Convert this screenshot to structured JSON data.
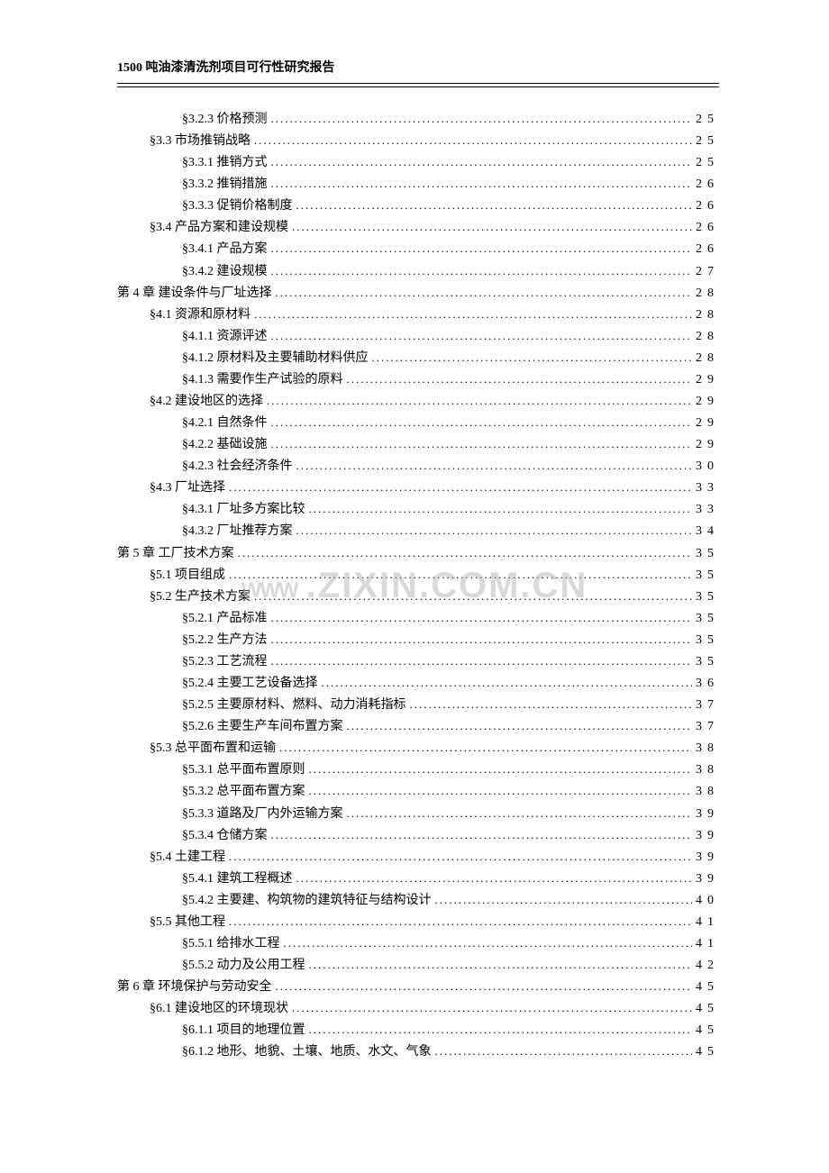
{
  "header": "1500 吨油漆清洗剂项目可行性研究报告",
  "watermark": {
    "prefix": "WWW",
    "main": ".ZIXIN.COM.CN"
  },
  "toc": [
    {
      "level": 3,
      "label": "§3.2.3  价格预测",
      "page": "25"
    },
    {
      "level": 2,
      "label": "§3.3  市场推销战略",
      "page": "25"
    },
    {
      "level": 3,
      "label": "§3.3.1  推销方式",
      "page": "25"
    },
    {
      "level": 3,
      "label": "§3.3.2  推销措施",
      "page": "26"
    },
    {
      "level": 3,
      "label": "§3.3.3  促销价格制度",
      "page": "26"
    },
    {
      "level": 2,
      "label": "§3.4  产品方案和建设规模",
      "page": "26"
    },
    {
      "level": 3,
      "label": "§3.4.1  产品方案",
      "page": "26"
    },
    {
      "level": 3,
      "label": "§3.4.2  建设规模",
      "page": "27"
    },
    {
      "level": 1,
      "label": "第 4 章  建设条件与厂址选择",
      "page": "28"
    },
    {
      "level": 2,
      "label": "§4.1  资源和原材料",
      "page": "28"
    },
    {
      "level": 3,
      "label": "§4.1.1  资源评述",
      "page": "28"
    },
    {
      "level": 3,
      "label": "§4.1.2  原材料及主要辅助材料供应",
      "page": "28"
    },
    {
      "level": 3,
      "label": "§4.1.3  需要作生产试验的原料",
      "page": "29"
    },
    {
      "level": 2,
      "label": "§4.2  建设地区的选择",
      "page": "29"
    },
    {
      "level": 3,
      "label": "§4.2.1  自然条件",
      "page": "29"
    },
    {
      "level": 3,
      "label": "§4.2.2  基础设施",
      "page": "29"
    },
    {
      "level": 3,
      "label": "§4.2.3  社会经济条件",
      "page": "30"
    },
    {
      "level": 2,
      "label": "§4.3  厂址选择",
      "page": "33"
    },
    {
      "level": 3,
      "label": "§4.3.1  厂址多方案比较",
      "page": "33"
    },
    {
      "level": 3,
      "label": "§4.3.2  厂址推荐方案",
      "page": "34"
    },
    {
      "level": 1,
      "label": "第 5 章  工厂技术方案",
      "page": "35"
    },
    {
      "level": 2,
      "label": "§5.1  项目组成",
      "page": "35"
    },
    {
      "level": 2,
      "label": "§5.2  生产技术方案",
      "page": "35"
    },
    {
      "level": 3,
      "label": "§5.2.1  产品标准",
      "page": "35"
    },
    {
      "level": 3,
      "label": "§5.2.2  生产方法",
      "page": "35"
    },
    {
      "level": 3,
      "label": "§5.2.3  工艺流程",
      "page": "35"
    },
    {
      "level": 3,
      "label": "§5.2.4  主要工艺设备选择",
      "page": "36"
    },
    {
      "level": 3,
      "label": "§5.2.5  主要原材料、燃料、动力消耗指标",
      "page": "37"
    },
    {
      "level": 3,
      "label": "§5.2.6  主要生产车间布置方案",
      "page": "37"
    },
    {
      "level": 2,
      "label": "§5.3  总平面布置和运输",
      "page": "38"
    },
    {
      "level": 3,
      "label": "§5.3.1  总平面布置原则",
      "page": "38"
    },
    {
      "level": 3,
      "label": "§5.3.2  总平面布置方案",
      "page": "38"
    },
    {
      "level": 3,
      "label": "§5.3.3  道路及厂内外运输方案",
      "page": "39"
    },
    {
      "level": 3,
      "label": "§5.3.4  仓储方案",
      "page": "39"
    },
    {
      "level": 2,
      "label": "§5.4  土建工程",
      "page": "39"
    },
    {
      "level": 3,
      "label": "§5.4.1  建筑工程概述",
      "page": "39"
    },
    {
      "level": 3,
      "label": "§5.4.2  主要建、构筑物的建筑特征与结构设计",
      "page": "40"
    },
    {
      "level": 2,
      "label": "§5.5  其他工程",
      "page": "41"
    },
    {
      "level": 3,
      "label": "§5.5.1  给排水工程",
      "page": "41"
    },
    {
      "level": 3,
      "label": "§5.5.2  动力及公用工程",
      "page": "42"
    },
    {
      "level": 1,
      "label": "第 6 章  环境保护与劳动安全",
      "page": "45"
    },
    {
      "level": 2,
      "label": "§6.1  建设地区的环境现状",
      "page": "45"
    },
    {
      "level": 3,
      "label": "§6.1.1  项目的地理位置",
      "page": "45"
    },
    {
      "level": 3,
      "label": "§6.1.2  地形、地貌、土壤、地质、水文、气象",
      "page": "45"
    }
  ]
}
